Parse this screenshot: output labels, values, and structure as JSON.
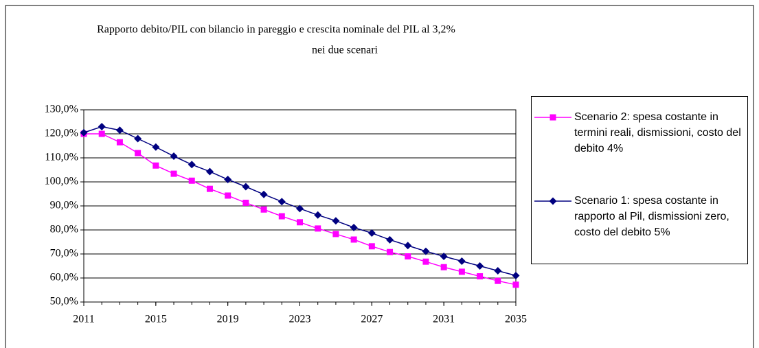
{
  "chart_data": {
    "type": "line",
    "title_lines": [
      "Rapporto debito/PIL con bilancio in pareggio e crescita nominale del PIL al 3,2%",
      "nei due scenari"
    ],
    "x": [
      2011,
      2012,
      2013,
      2014,
      2015,
      2016,
      2017,
      2018,
      2019,
      2020,
      2021,
      2022,
      2023,
      2024,
      2025,
      2026,
      2027,
      2028,
      2029,
      2030,
      2031,
      2032,
      2033,
      2034,
      2035
    ],
    "series": [
      {
        "name": "Scenario 2: spesa costante in termini reali, dismissioni, costo del debito 4%",
        "color": "#ff00ff",
        "marker": "square",
        "values": [
          120,
          120,
          116.5,
          112,
          106.8,
          103.4,
          100.5,
          97.1,
          94.3,
          91.3,
          88.5,
          85.7,
          83.2,
          80.6,
          78.3,
          76,
          73.2,
          70.8,
          69,
          66.8,
          64.5,
          62.6,
          60.7,
          58.8,
          57.2
        ]
      },
      {
        "name": "Scenario 1: spesa costante in rapporto al Pil, dismissioni zero, costo del debito 5%",
        "color": "#000080",
        "marker": "diamond",
        "values": [
          120.5,
          123,
          121.5,
          118,
          114.5,
          110.7,
          107.2,
          104.3,
          101,
          98,
          94.8,
          91.8,
          88.9,
          86.2,
          83.8,
          81,
          78.7,
          75.9,
          73.5,
          71.1,
          69,
          67,
          65,
          63,
          61
        ]
      }
    ],
    "xlim": [
      2011,
      2035
    ],
    "xticks": [
      2011,
      2015,
      2019,
      2023,
      2027,
      2031,
      2035
    ],
    "ylim": [
      50,
      130
    ],
    "yticks": [
      {
        "value": 50,
        "label": "50,0%"
      },
      {
        "value": 60,
        "label": "60,0%"
      },
      {
        "value": 70,
        "label": "70,0%"
      },
      {
        "value": 80,
        "label": "80,0%"
      },
      {
        "value": 90,
        "label": "90,0%"
      },
      {
        "value": 100,
        "label": "100,0%"
      },
      {
        "value": 110,
        "label": "110,0%"
      },
      {
        "value": 120,
        "label": "120,0%"
      },
      {
        "value": 130,
        "label": "130,0%"
      }
    ],
    "grid": true,
    "legend": "right"
  }
}
